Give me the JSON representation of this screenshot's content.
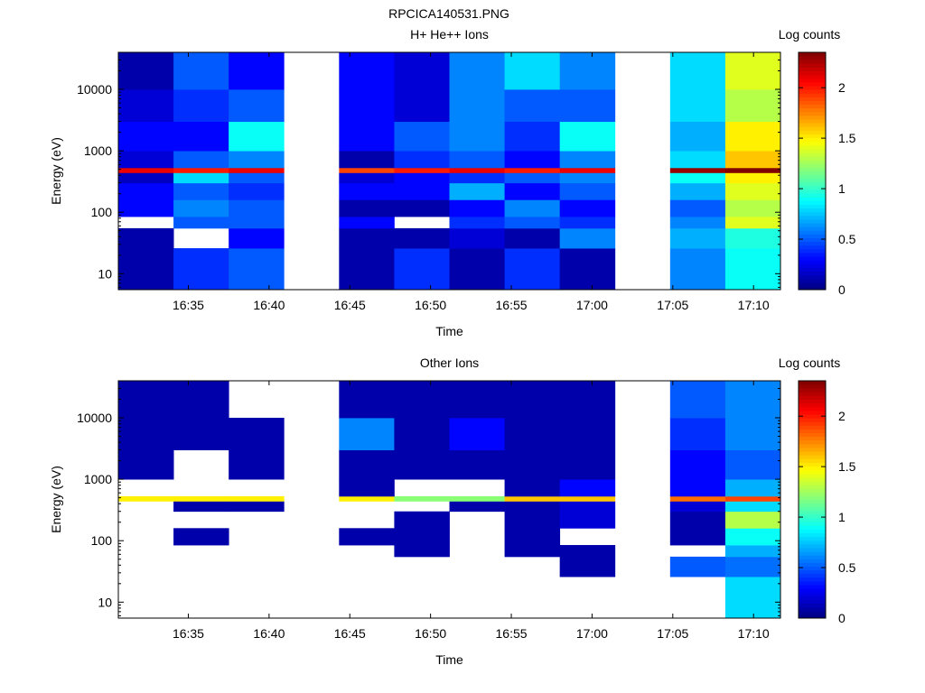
{
  "figure_title": "RPCICA140531.PNG",
  "chart_data": [
    {
      "type": "heatmap",
      "title": "H+ He++ Ions",
      "xlabel": "Time",
      "ylabel": "Energy (eV)",
      "yscale": "log",
      "xlim": [
        "16:30:40",
        "17:11:40"
      ],
      "ylim": [
        5.5,
        40000
      ],
      "x_ticks": [
        "16:35",
        "16:40",
        "16:45",
        "16:50",
        "16:55",
        "17:00",
        "17:05",
        "17:10"
      ],
      "y_ticks": [
        "10",
        "100",
        "1000",
        "10000"
      ],
      "colorbar": {
        "label": "Log counts",
        "range": [
          0,
          2.35
        ],
        "ticks": [
          "0",
          "0.5",
          "1",
          "1.5",
          "2"
        ],
        "colormap": "jet"
      },
      "energy_bands": [
        [
          5.5,
          26,
          0.1,
          0.4,
          0.5,
          null,
          0.1,
          0.4,
          0.1,
          0.4,
          0.1,
          null,
          0.6,
          0.9
        ],
        [
          26,
          55,
          0.1,
          null,
          0.3,
          null,
          0.1,
          0.1,
          0.2,
          0.1,
          0.6,
          null,
          0.7,
          0.95
        ],
        [
          55,
          85,
          null,
          0.5,
          0.5,
          null,
          0.3,
          null,
          0.4,
          0.5,
          0.4,
          null,
          0.6,
          1.4
        ],
        [
          85,
          160,
          0.3,
          0.6,
          0.5,
          null,
          0.1,
          0.1,
          0.3,
          0.6,
          0.3,
          null,
          0.5,
          1.3
        ],
        [
          160,
          300,
          0.3,
          0.5,
          0.4,
          null,
          0.3,
          0.3,
          0.7,
          0.3,
          0.5,
          null,
          0.7,
          1.4
        ],
        [
          300,
          440,
          0.15,
          0.8,
          0.5,
          null,
          0.2,
          0.3,
          0.4,
          0.5,
          0.6,
          null,
          0.9,
          1.5
        ],
        [
          440,
          530,
          2.1,
          2.0,
          2.1,
          null,
          1.9,
          2.0,
          2.1,
          2.0,
          2.1,
          null,
          2.3,
          2.4
        ],
        [
          530,
          1000,
          0.2,
          0.5,
          0.6,
          null,
          0.1,
          0.4,
          0.5,
          0.3,
          0.6,
          null,
          0.8,
          1.6
        ],
        [
          1000,
          3000,
          0.3,
          0.3,
          0.9,
          null,
          0.3,
          0.5,
          0.6,
          0.4,
          0.9,
          null,
          0.7,
          1.5
        ],
        [
          3000,
          10000,
          0.2,
          0.4,
          0.5,
          null,
          0.3,
          0.2,
          0.6,
          0.5,
          0.5,
          null,
          0.8,
          1.3
        ],
        [
          10000,
          40000,
          0.1,
          0.5,
          0.3,
          null,
          0.3,
          0.2,
          0.6,
          0.8,
          0.6,
          null,
          0.8,
          1.4
        ]
      ]
    },
    {
      "type": "heatmap",
      "title": "Other Ions",
      "xlabel": "Time",
      "ylabel": "Energy (eV)",
      "yscale": "log",
      "xlim": [
        "16:30:40",
        "17:11:40"
      ],
      "ylim": [
        5.5,
        40000
      ],
      "x_ticks": [
        "16:35",
        "16:40",
        "16:45",
        "16:50",
        "16:55",
        "17:00",
        "17:05",
        "17:10"
      ],
      "y_ticks": [
        "10",
        "100",
        "1000",
        "10000"
      ],
      "colorbar": {
        "label": "Log counts",
        "range": [
          0,
          2.35
        ],
        "ticks": [
          "0",
          "0.5",
          "1",
          "1.5",
          "2"
        ],
        "colormap": "jet"
      },
      "energy_bands": [
        [
          5.5,
          26,
          null,
          null,
          null,
          null,
          null,
          null,
          null,
          null,
          null,
          null,
          null,
          0.8
        ],
        [
          26,
          55,
          null,
          null,
          null,
          null,
          null,
          null,
          null,
          null,
          0.1,
          null,
          0.5,
          0.55
        ],
        [
          55,
          85,
          null,
          null,
          null,
          null,
          null,
          0.1,
          null,
          0.1,
          0.1,
          null,
          null,
          0.7
        ],
        [
          85,
          160,
          null,
          0.1,
          null,
          null,
          0.1,
          0.1,
          null,
          0.1,
          null,
          null,
          0.1,
          0.9
        ],
        [
          160,
          300,
          null,
          null,
          null,
          null,
          null,
          0.1,
          null,
          0.1,
          0.2,
          null,
          0.1,
          1.3
        ],
        [
          300,
          440,
          null,
          0.1,
          0.1,
          null,
          null,
          null,
          0.1,
          0.1,
          0.2,
          null,
          0.2,
          0.8
        ],
        [
          440,
          530,
          1.5,
          1.5,
          1.5,
          null,
          1.5,
          1.2,
          1.2,
          1.6,
          1.6,
          null,
          1.8,
          1.9
        ],
        [
          530,
          1000,
          null,
          null,
          null,
          null,
          0.1,
          null,
          null,
          0.1,
          0.3,
          null,
          0.3,
          0.7
        ],
        [
          1000,
          3000,
          0.1,
          null,
          0.1,
          null,
          0.1,
          0.1,
          0.1,
          0.1,
          0.1,
          null,
          0.3,
          0.5
        ],
        [
          3000,
          10000,
          0.1,
          0.1,
          0.1,
          null,
          0.6,
          0.1,
          0.3,
          0.1,
          0.1,
          null,
          0.4,
          0.6
        ],
        [
          10000,
          40000,
          0.1,
          0.1,
          null,
          null,
          0.1,
          0.1,
          0.1,
          0.1,
          0.1,
          null,
          0.5,
          0.6
        ]
      ]
    }
  ]
}
